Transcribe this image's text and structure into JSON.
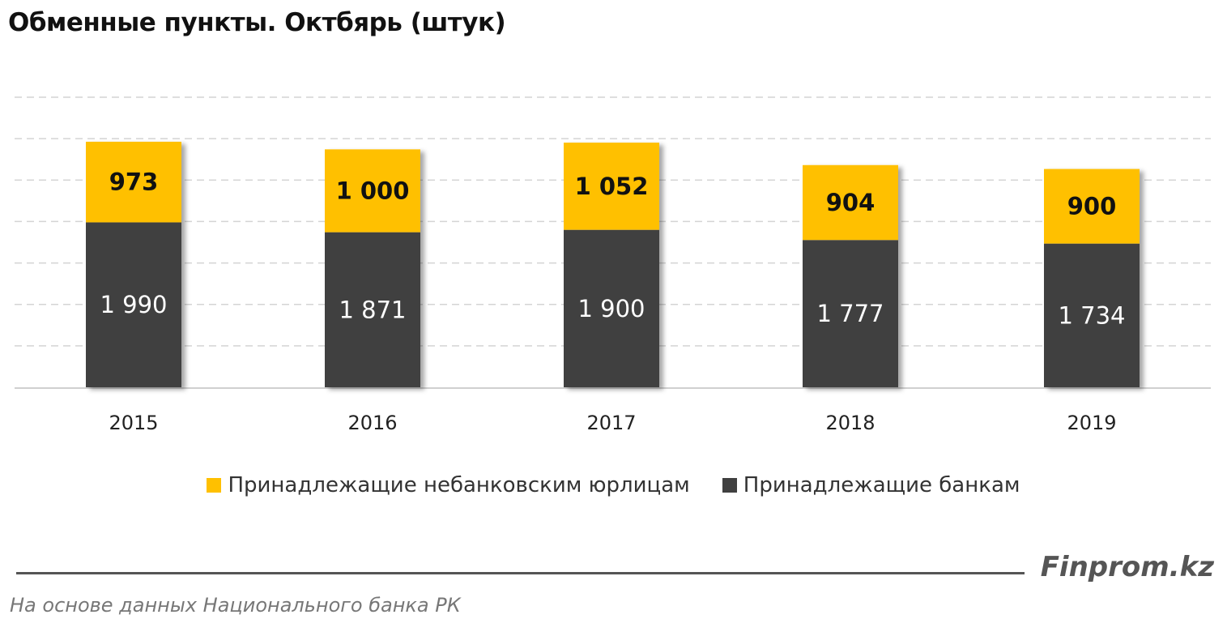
{
  "chart_data": {
    "type": "bar",
    "stacked": true,
    "title": "Обменные пункты. Октбярь (штук)",
    "categories": [
      "2015",
      "2016",
      "2017",
      "2018",
      "2019"
    ],
    "series": [
      {
        "name": "Принадлежащие банкам",
        "color": "#404040",
        "values": [
          1990,
          1871,
          1900,
          1777,
          1734
        ],
        "labels": [
          "1 990",
          "1 871",
          "1 900",
          "1 777",
          "1 734"
        ]
      },
      {
        "name": "Принадлежащие небанковским юрлицам",
        "color": "#FFC000",
        "values": [
          973,
          1000,
          1052,
          904,
          900
        ],
        "labels": [
          "973",
          "1 000",
          "1 052",
          "904",
          "900"
        ]
      }
    ],
    "ylim": [
      0,
      3500
    ],
    "grid": true,
    "legend": "bottom"
  },
  "footer": {
    "brand": "Finprom.kz",
    "source": "На основе данных  Национального  банка РК"
  }
}
